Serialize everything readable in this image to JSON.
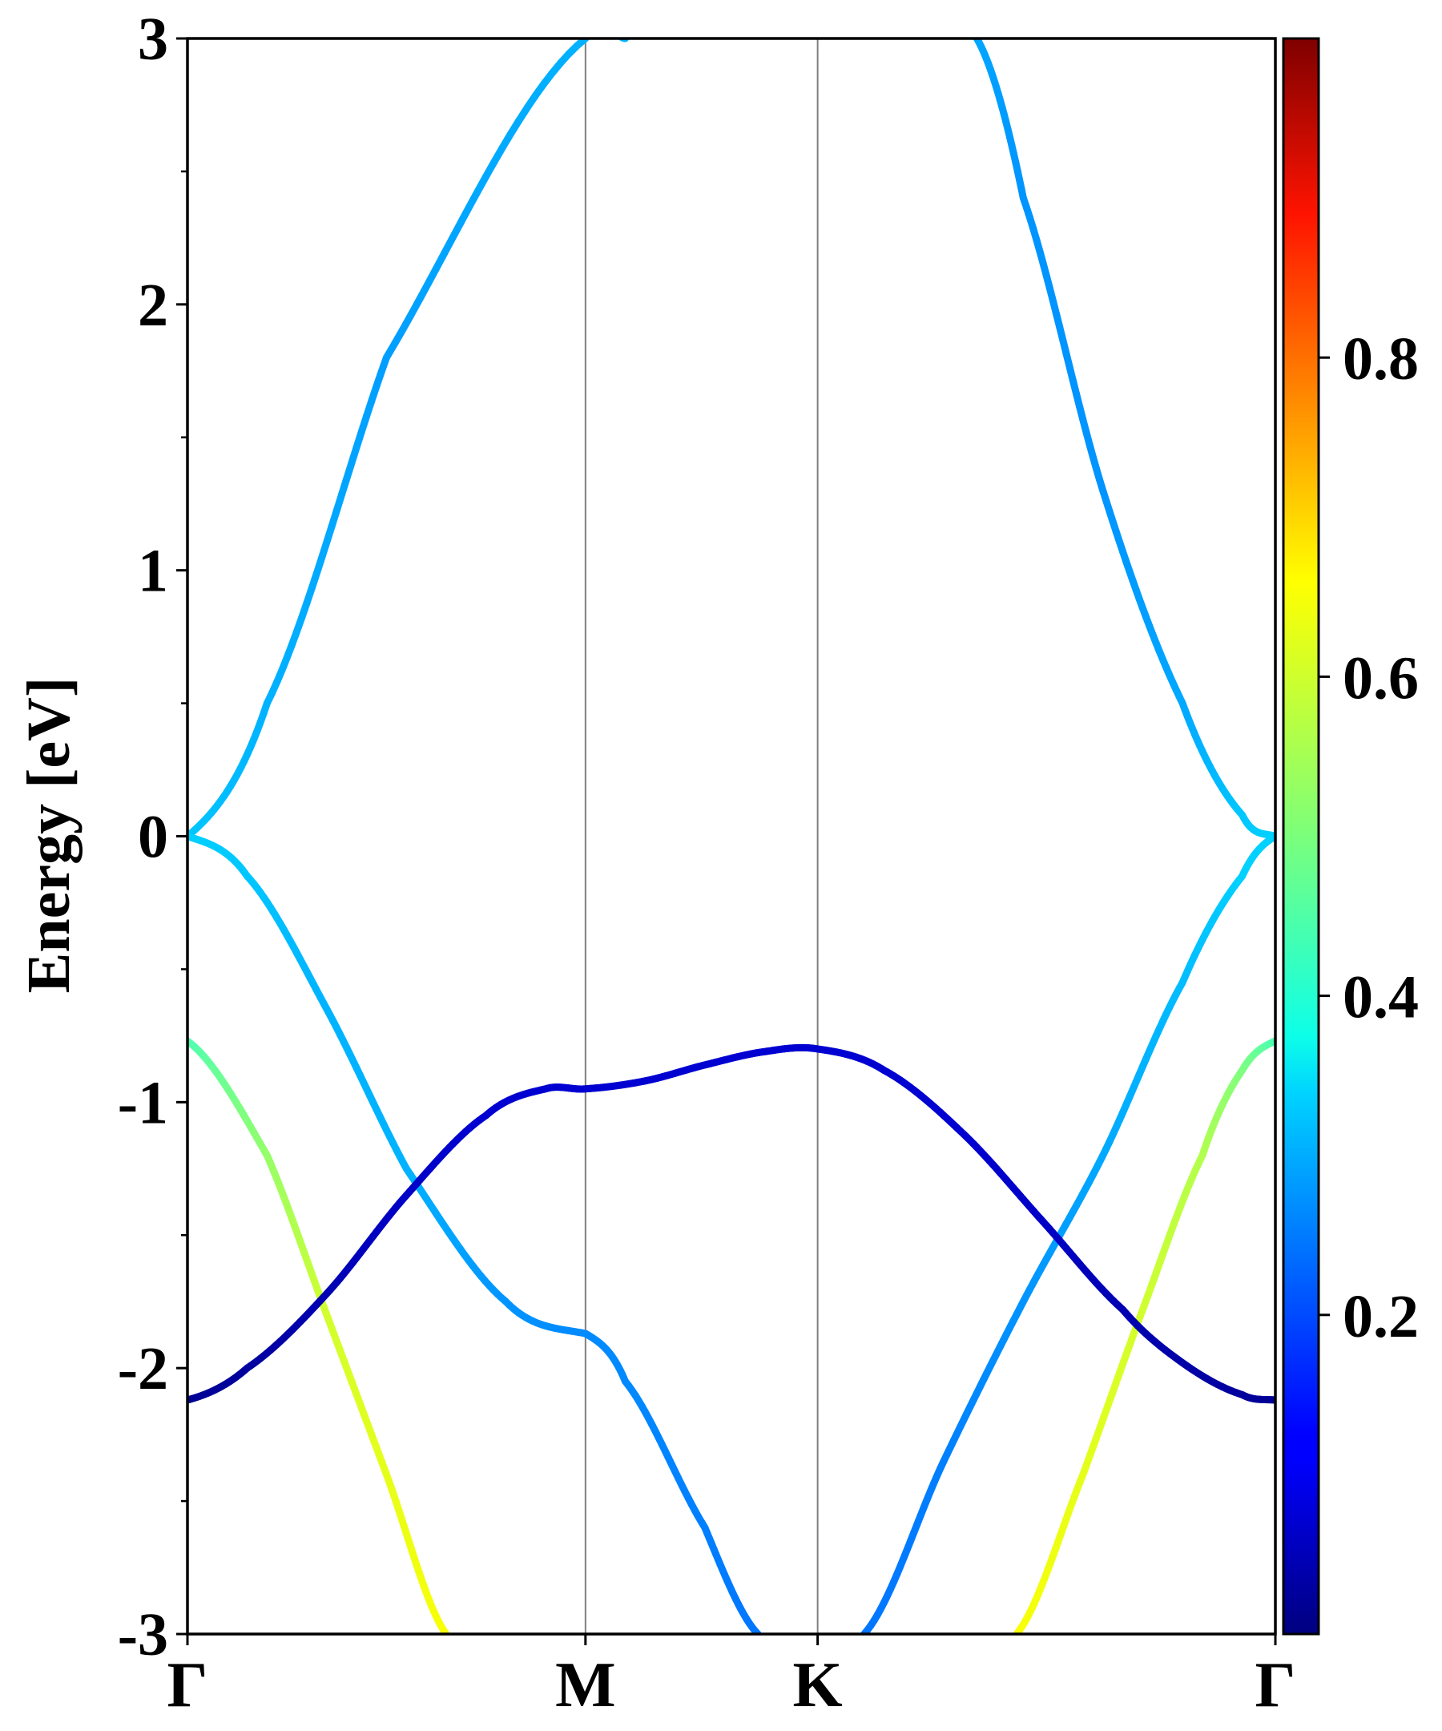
{
  "chart_data": {
    "type": "line",
    "title": "",
    "xlabel": "",
    "ylabel": "Energy [eV]",
    "ylim": [
      -3,
      3
    ],
    "y_ticks": [
      "-3",
      "-2",
      "-1",
      "0",
      "1",
      "2",
      "3"
    ],
    "k_path": [
      "Γ",
      "M",
      "K",
      "Γ"
    ],
    "k_positions": [
      0,
      1,
      1.5833,
      2.7333
    ],
    "k_range": [
      0,
      2.7333
    ],
    "colorbar": {
      "colormap": "jet",
      "range": [
        0,
        1
      ],
      "ticks": [
        "0.2",
        "0.4",
        "0.6",
        "0.8"
      ]
    },
    "series": [
      {
        "k": [
          0,
          0.2,
          0.5,
          1.0,
          1.1
        ],
        "energy": [
          0.0,
          0.5,
          1.8,
          3.0,
          3.0
        ],
        "weight": [
          0.32,
          0.3,
          0.28,
          0.3,
          0.3
        ]
      },
      {
        "k": [
          1.9833,
          2.1,
          2.3,
          2.5,
          2.65,
          2.7333
        ],
        "energy": [
          3.0,
          2.4,
          1.3,
          0.5,
          0.08,
          0.0
        ],
        "weight": [
          0.29,
          0.27,
          0.27,
          0.29,
          0.32,
          0.33
        ]
      },
      {
        "k": [
          0,
          0.15,
          0.35,
          0.55,
          0.8,
          1.0
        ],
        "energy": [
          0.0,
          -0.15,
          -0.65,
          -1.25,
          -1.75,
          -1.87
        ],
        "weight": [
          0.33,
          0.32,
          0.3,
          0.3,
          0.27,
          0.26
        ]
      },
      {
        "k": [
          1.0,
          1.1,
          1.3,
          1.4333
        ],
        "energy": [
          -1.87,
          -2.05,
          -2.6,
          -3.0
        ],
        "weight": [
          0.26,
          0.26,
          0.25,
          0.24
        ]
      },
      {
        "k": [
          1.7,
          1.9,
          2.1,
          2.3,
          2.5,
          2.65,
          2.7333
        ],
        "energy": [
          -3.0,
          -2.35,
          -1.75,
          -1.2,
          -0.55,
          -0.15,
          0.0
        ],
        "weight": [
          0.24,
          0.25,
          0.27,
          0.29,
          0.31,
          0.33,
          0.33
        ]
      },
      {
        "k": [
          0,
          0.2,
          0.35,
          0.5,
          0.65
        ],
        "energy": [
          -0.77,
          -1.2,
          -1.8,
          -2.4,
          -3.0
        ],
        "weight": [
          0.45,
          0.52,
          0.58,
          0.6,
          0.62
        ]
      },
      {
        "k": [
          2.0833,
          2.25,
          2.4,
          2.55,
          2.65,
          2.7333
        ],
        "energy": [
          -3.0,
          -2.4,
          -1.78,
          -1.2,
          -0.88,
          -0.77
        ],
        "weight": [
          0.62,
          0.6,
          0.58,
          0.55,
          0.5,
          0.45
        ]
      },
      {
        "k": [
          0,
          0.15,
          0.35,
          0.55,
          0.75,
          0.9,
          1.0,
          1.15,
          1.3,
          1.45,
          1.5833,
          1.75,
          1.95,
          2.15,
          2.35,
          2.5,
          2.65,
          2.7333
        ],
        "energy": [
          -2.12,
          -2.0,
          -1.72,
          -1.35,
          -1.05,
          -0.95,
          -0.95,
          -0.92,
          -0.86,
          -0.81,
          -0.8,
          -0.88,
          -1.12,
          -1.45,
          -1.78,
          -1.98,
          -2.1,
          -2.12
        ],
        "weight": [
          0.02,
          0.03,
          0.05,
          0.07,
          0.08,
          0.08,
          0.08,
          0.08,
          0.08,
          0.08,
          0.08,
          0.08,
          0.08,
          0.07,
          0.05,
          0.04,
          0.03,
          0.02
        ]
      }
    ]
  }
}
